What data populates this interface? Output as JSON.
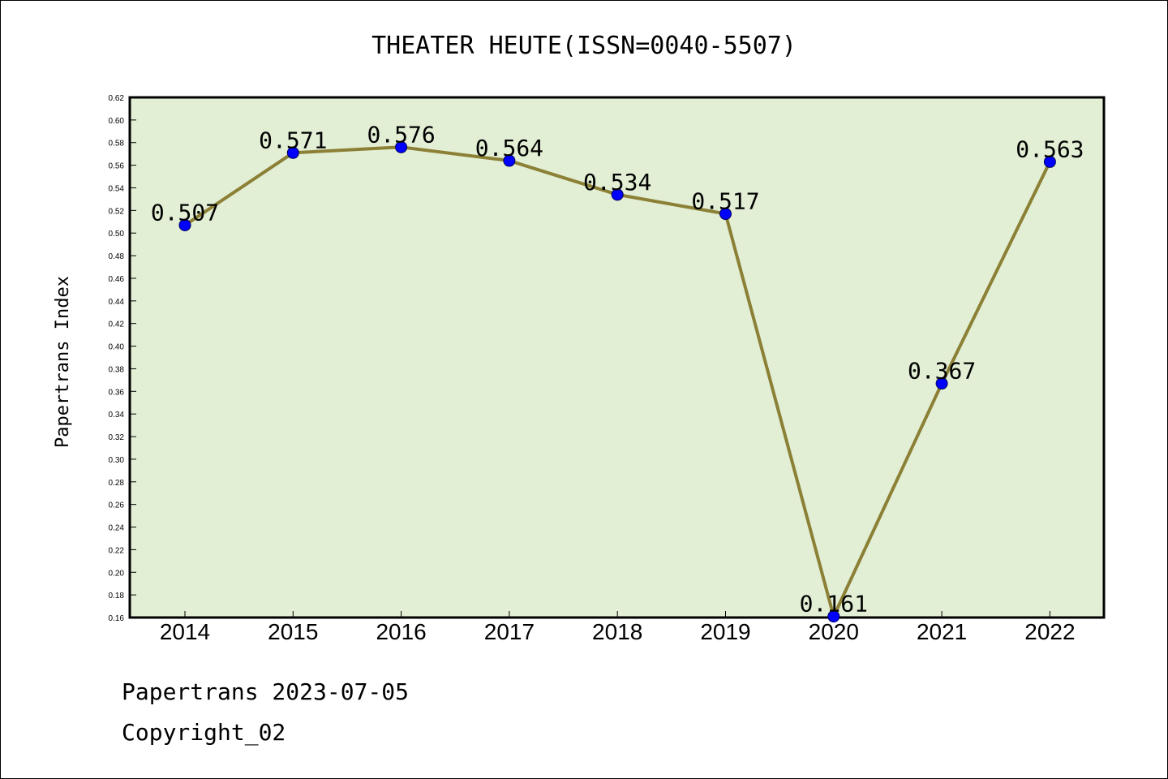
{
  "footer": {
    "line1": "Papertrans 2023-07-05",
    "line2": "Copyright_02"
  },
  "colors": {
    "plot_background": "#e2efd5",
    "line": "#8b8035",
    "marker": "#0000ff"
  },
  "chart_data": {
    "type": "line",
    "title": "THEATER HEUTE(ISSN=0040-5507)",
    "xlabel": "",
    "ylabel": "Papertrans Index",
    "categories": [
      "2014",
      "2015",
      "2016",
      "2017",
      "2018",
      "2019",
      "2020",
      "2021",
      "2022"
    ],
    "series": [
      {
        "values": [
          0.507,
          0.571,
          0.576,
          0.564,
          0.534,
          0.517,
          0.161,
          0.367,
          0.563
        ],
        "labels": [
          "0.507",
          "0.571",
          "0.576",
          "0.564",
          "0.534",
          "0.517",
          "0.161",
          "0.367",
          "0.563"
        ]
      }
    ],
    "ylim": [
      0.16,
      0.62
    ],
    "yticks": [
      "0.16",
      "0.18",
      "0.20",
      "0.22",
      "0.24",
      "0.26",
      "0.28",
      "0.30",
      "0.32",
      "0.34",
      "0.36",
      "0.38",
      "0.40",
      "0.42",
      "0.44",
      "0.46",
      "0.48",
      "0.50",
      "0.52",
      "0.54",
      "0.56",
      "0.58",
      "0.60",
      "0.62"
    ],
    "grid": false,
    "legend": "none"
  }
}
